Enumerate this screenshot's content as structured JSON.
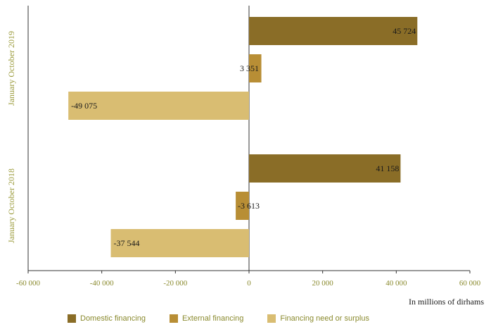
{
  "chart_data": {
    "type": "bar",
    "orientation": "horizontal",
    "categories": [
      "January October 2019",
      "January October 2018"
    ],
    "series": [
      {
        "name": "Domestic financing",
        "values": [
          45724,
          41158
        ],
        "labels": [
          "45 724",
          "41 158"
        ],
        "color": "#8a6d27"
      },
      {
        "name": "External financing",
        "values": [
          3351,
          -3613
        ],
        "labels": [
          "3 351",
          "-3 613"
        ],
        "color": "#b88e35"
      },
      {
        "name": "Financing need or surplus",
        "values": [
          -49075,
          -37544
        ],
        "labels": [
          "-49 075",
          "-37 544"
        ],
        "color": "#d9bd72"
      }
    ],
    "xlim": [
      -60000,
      60000
    ],
    "xticks": [
      -60000,
      -40000,
      -20000,
      0,
      20000,
      40000,
      60000
    ],
    "xtick_labels": [
      "-60 000",
      "-40 000",
      "-20 000",
      "0",
      "20 000",
      "40 000",
      "60 000"
    ],
    "xlabel": "In millions of dirhams",
    "ylabel": "",
    "title": "",
    "grid": false,
    "legend_position": "bottom"
  }
}
